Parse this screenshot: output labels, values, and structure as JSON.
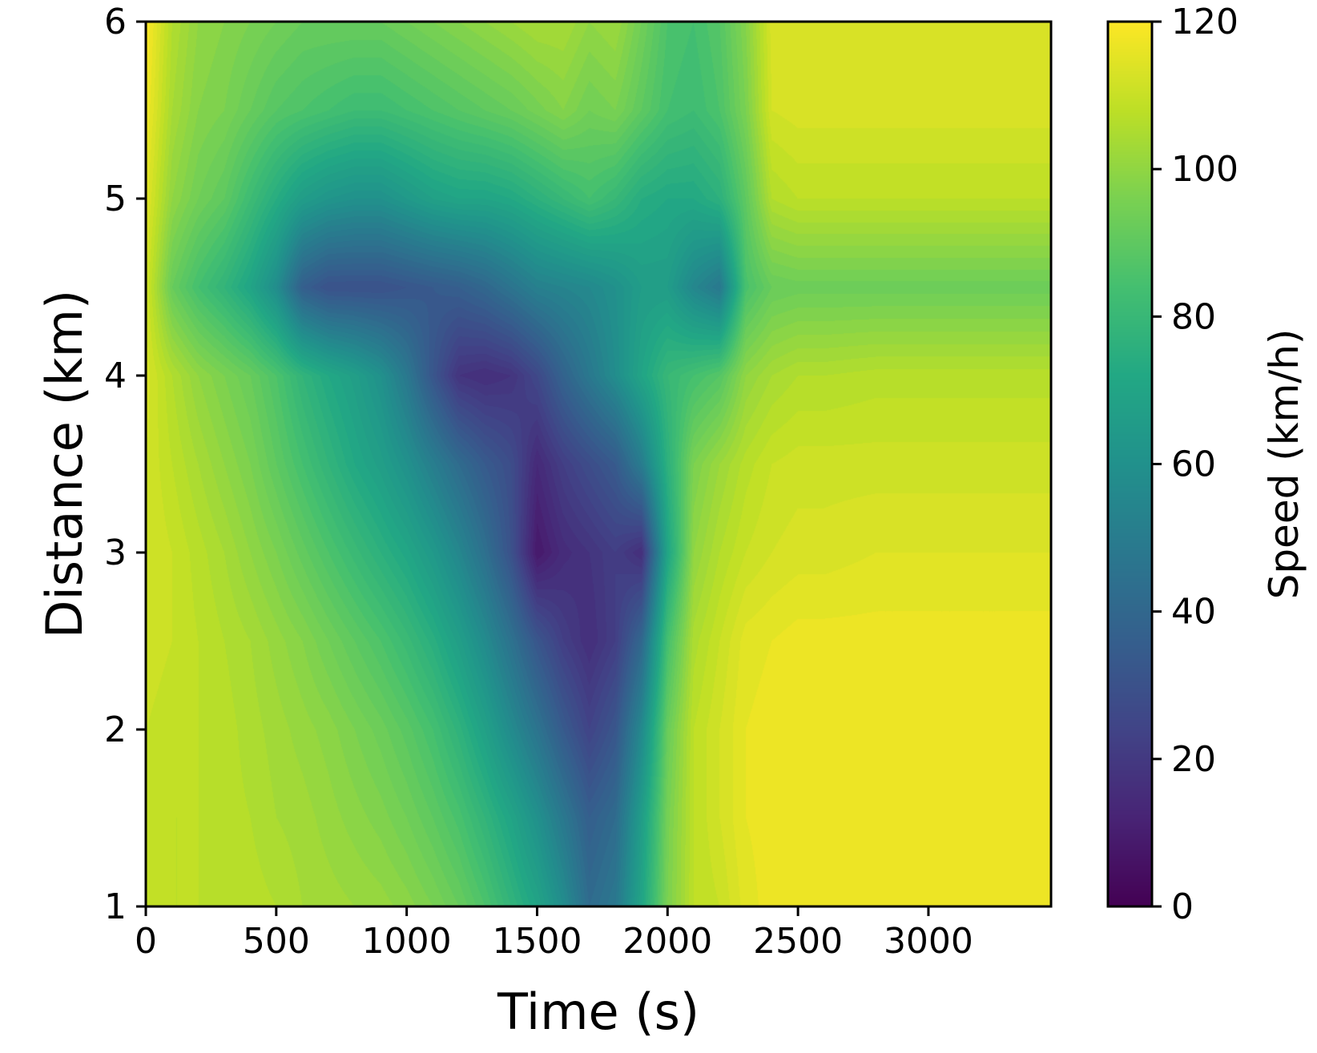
{
  "chart_data": {
    "type": "heatmap",
    "title": "",
    "xlabel": "Time (s)",
    "ylabel": "Distance (km)",
    "xlim": [
      0,
      3470
    ],
    "ylim": [
      1,
      6
    ],
    "xticks": [
      0,
      500,
      1000,
      1500,
      2000,
      2500,
      3000
    ],
    "yticks": [
      1,
      2,
      3,
      4,
      5,
      6
    ],
    "colormap": "viridis",
    "colorbar": {
      "label": "Speed (km/h)",
      "range": [
        0,
        120
      ],
      "ticks": [
        0,
        20,
        40,
        60,
        80,
        100,
        120
      ]
    },
    "x": [
      0,
      100,
      200,
      300,
      400,
      500,
      600,
      700,
      800,
      900,
      1000,
      1100,
      1200,
      1300,
      1400,
      1500,
      1600,
      1700,
      1800,
      1900,
      2000,
      2100,
      2200,
      2300,
      2400,
      2500,
      2600,
      2800,
      3000,
      3200,
      3470
    ],
    "y": [
      1,
      1.5,
      2,
      2.5,
      3,
      3.5,
      4,
      4.5,
      5,
      5.5,
      6
    ],
    "z": [
      [
        108,
        108,
        108,
        108,
        107,
        106,
        104,
        103,
        102,
        101,
        99,
        96,
        92,
        86,
        78,
        70,
        58,
        42,
        48,
        70,
        96,
        108,
        110,
        115,
        117,
        117,
        117,
        117,
        117,
        117,
        117
      ],
      [
        109,
        108,
        108,
        107,
        106,
        104,
        103,
        101,
        99,
        97,
        94,
        90,
        85,
        78,
        70,
        60,
        48,
        36,
        42,
        66,
        95,
        108,
        112,
        116,
        117,
        117,
        117,
        117,
        117,
        117,
        117
      ],
      [
        110,
        109,
        108,
        107,
        105,
        103,
        101,
        99,
        96,
        93,
        89,
        84,
        77,
        68,
        57,
        46,
        34,
        24,
        32,
        56,
        92,
        108,
        112,
        116,
        117,
        117,
        117,
        117,
        117,
        117,
        117
      ],
      [
        111,
        110,
        108,
        106,
        104,
        101,
        98,
        94,
        90,
        86,
        81,
        75,
        67,
        57,
        45,
        32,
        22,
        16,
        22,
        40,
        84,
        105,
        110,
        115,
        116,
        117,
        117,
        117,
        117,
        117,
        117
      ],
      [
        112,
        110,
        107,
        104,
        100,
        96,
        91,
        86,
        81,
        76,
        71,
        64,
        55,
        44,
        30,
        8,
        15,
        18,
        22,
        16,
        70,
        100,
        106,
        110,
        112,
        113,
        113,
        114,
        114,
        114,
        114
      ],
      [
        112,
        108,
        104,
        100,
        96,
        90,
        84,
        78,
        72,
        67,
        60,
        51,
        42,
        34,
        28,
        14,
        22,
        28,
        34,
        50,
        76,
        96,
        102,
        107,
        110,
        111,
        111,
        111,
        111,
        111,
        111
      ],
      [
        113,
        106,
        100,
        96,
        92,
        86,
        78,
        72,
        67,
        60,
        48,
        32,
        18,
        16,
        18,
        26,
        38,
        48,
        58,
        70,
        80,
        84,
        88,
        100,
        104,
        106,
        106,
        107,
        107,
        107,
        107
      ],
      [
        112,
        92,
        84,
        78,
        70,
        58,
        36,
        30,
        30,
        30,
        32,
        34,
        36,
        40,
        46,
        52,
        54,
        56,
        60,
        66,
        66,
        55,
        48,
        85,
        92,
        93,
        93,
        93,
        93,
        93,
        93
      ],
      [
        115,
        100,
        94,
        90,
        82,
        74,
        66,
        62,
        60,
        60,
        64,
        68,
        70,
        70,
        72,
        76,
        80,
        84,
        80,
        74,
        72,
        72,
        76,
        90,
        106,
        108,
        108,
        108,
        108,
        108,
        108
      ],
      [
        118,
        104,
        98,
        96,
        92,
        88,
        86,
        84,
        82,
        82,
        84,
        86,
        88,
        90,
        92,
        95,
        98,
        94,
        96,
        90,
        84,
        82,
        86,
        96,
        112,
        113,
        113,
        113,
        113,
        113,
        113
      ],
      [
        120,
        106,
        100,
        98,
        96,
        94,
        92,
        92,
        92,
        92,
        94,
        96,
        98,
        100,
        102,
        104,
        104,
        100,
        102,
        94,
        86,
        84,
        88,
        98,
        113,
        113,
        113,
        113,
        113,
        113,
        113
      ]
    ]
  }
}
